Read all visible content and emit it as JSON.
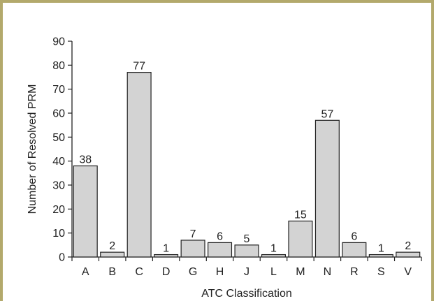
{
  "chart_data": {
    "type": "bar",
    "xlabel": "ATC Classification",
    "ylabel": "Number of Resolved PRM",
    "categories": [
      "A",
      "B",
      "C",
      "D",
      "G",
      "H",
      "J",
      "L",
      "M",
      "N",
      "R",
      "S",
      "V"
    ],
    "values": [
      38,
      2,
      77,
      1,
      7,
      6,
      5,
      1,
      15,
      57,
      6,
      1,
      2
    ],
    "ylim": [
      0,
      90
    ],
    "yticks": [
      "0",
      "10",
      "20",
      "30",
      "40",
      "50",
      "60",
      "70",
      "80",
      "90"
    ],
    "grid": false,
    "legend": "none",
    "bar_color": "#d3d3d3",
    "bar_edge_color": "#222222",
    "frame_color": "#b3a96c"
  }
}
